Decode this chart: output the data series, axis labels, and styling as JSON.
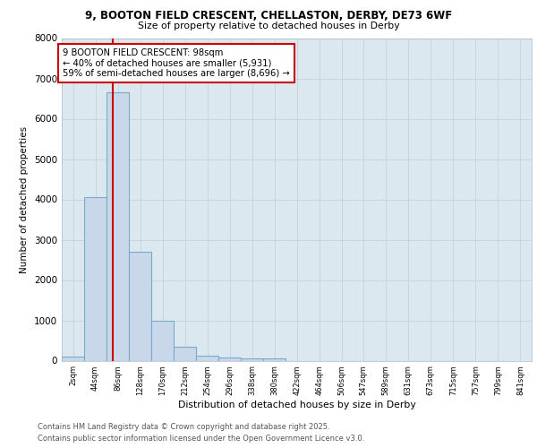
{
  "title_line1": "9, BOOTON FIELD CRESCENT, CHELLASTON, DERBY, DE73 6WF",
  "title_line2": "Size of property relative to detached houses in Derby",
  "xlabel": "Distribution of detached houses by size in Derby",
  "ylabel": "Number of detached properties",
  "bar_edges": [
    2,
    44,
    86,
    128,
    170,
    212,
    254,
    296,
    338,
    380,
    422,
    464,
    506,
    547,
    589,
    631,
    673,
    715,
    757,
    799,
    841
  ],
  "bar_heights": [
    100,
    4050,
    6650,
    2700,
    980,
    340,
    130,
    80,
    50,
    50,
    0,
    0,
    0,
    0,
    0,
    0,
    0,
    0,
    0,
    0
  ],
  "bar_color": "#c8d8ea",
  "bar_edgecolor": "#7aaac8",
  "property_size": 98,
  "vline_color": "#cc0000",
  "annotation_text": "9 BOOTON FIELD CRESCENT: 98sqm\n← 40% of detached houses are smaller (5,931)\n59% of semi-detached houses are larger (8,696) →",
  "annotation_boxcolor": "white",
  "annotation_edgecolor": "#cc0000",
  "ylim": [
    0,
    8000
  ],
  "yticks": [
    0,
    1000,
    2000,
    3000,
    4000,
    5000,
    6000,
    7000,
    8000
  ],
  "tick_labels": [
    "2sqm",
    "44sqm",
    "86sqm",
    "128sqm",
    "170sqm",
    "212sqm",
    "254sqm",
    "296sqm",
    "338sqm",
    "380sqm",
    "422sqm",
    "464sqm",
    "506sqm",
    "547sqm",
    "589sqm",
    "631sqm",
    "673sqm",
    "715sqm",
    "757sqm",
    "799sqm",
    "841sqm"
  ],
  "grid_color": "#c8d4e0",
  "background_color": "#dce8f0",
  "footer_line1": "Contains HM Land Registry data © Crown copyright and database right 2025.",
  "footer_line2": "Contains public sector information licensed under the Open Government Licence v3.0."
}
